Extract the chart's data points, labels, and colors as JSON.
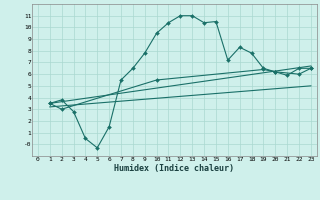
{
  "bg_color": "#cff0eb",
  "grid_color": "#aad8d0",
  "line_color": "#1a7068",
  "xlabel": "Humidex (Indice chaleur)",
  "xlim": [
    -0.5,
    23.5
  ],
  "ylim": [
    -1,
    12
  ],
  "xticks": [
    0,
    1,
    2,
    3,
    4,
    5,
    6,
    7,
    8,
    9,
    10,
    11,
    12,
    13,
    14,
    15,
    16,
    17,
    18,
    19,
    20,
    21,
    22,
    23
  ],
  "yticks": [
    0,
    1,
    2,
    3,
    4,
    5,
    6,
    7,
    8,
    9,
    10,
    11
  ],
  "ytick_labels": [
    "-0",
    "1",
    "2",
    "3",
    "4",
    "5",
    "6",
    "7",
    "8",
    "9",
    "10",
    "11"
  ],
  "line1_x": [
    1,
    2,
    3,
    4,
    5,
    6,
    7,
    8,
    9,
    10,
    11,
    12,
    13,
    14,
    15,
    16,
    17,
    18,
    19,
    20,
    21,
    22,
    23
  ],
  "line1_y": [
    3.5,
    3.8,
    2.8,
    0.5,
    -0.3,
    1.5,
    5.5,
    6.5,
    7.8,
    9.5,
    10.4,
    11.0,
    11.0,
    10.4,
    10.5,
    7.2,
    8.3,
    7.8,
    6.5,
    6.2,
    5.9,
    6.5,
    6.5
  ],
  "line2_x": [
    1,
    2,
    10,
    19,
    20,
    22,
    23
  ],
  "line2_y": [
    3.5,
    3.0,
    5.5,
    6.4,
    6.2,
    6.0,
    6.5
  ],
  "line3_x": [
    1,
    23
  ],
  "line3_y": [
    3.5,
    6.7
  ],
  "line4_x": [
    1,
    23
  ],
  "line4_y": [
    3.2,
    5.0
  ],
  "figsize": [
    3.2,
    2.0
  ],
  "dpi": 100
}
